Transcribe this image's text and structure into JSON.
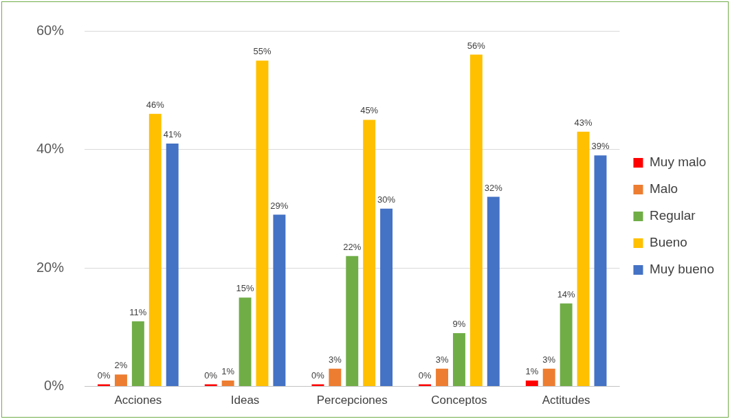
{
  "chart_data": {
    "type": "bar",
    "categories": [
      "Acciones",
      "Ideas",
      "Percepciones",
      "Conceptos",
      "Actitudes"
    ],
    "series": [
      {
        "name": "Muy malo",
        "color": "#ff0000",
        "values": [
          0,
          0,
          0,
          0,
          1
        ],
        "value_labels": [
          "0%",
          "0%",
          "0%",
          "0%",
          "1%"
        ]
      },
      {
        "name": "Malo",
        "color": "#ed7d31",
        "values": [
          2,
          1,
          3,
          3,
          3
        ],
        "value_labels": [
          "2%",
          "1%",
          "3%",
          "3%",
          "3%"
        ]
      },
      {
        "name": "Regular",
        "color": "#70ad47",
        "values": [
          11,
          15,
          22,
          9,
          14
        ],
        "value_labels": [
          "11%",
          "15%",
          "22%",
          "9%",
          "14%"
        ]
      },
      {
        "name": "Bueno",
        "color": "#ffc000",
        "values": [
          46,
          55,
          45,
          56,
          43
        ],
        "value_labels": [
          "46%",
          "55%",
          "45%",
          "56%",
          "43%"
        ]
      },
      {
        "name": "Muy bueno",
        "color": "#4472c4",
        "values": [
          41,
          29,
          30,
          32,
          39
        ],
        "value_labels": [
          "41%",
          "29%",
          "30%",
          "32%",
          "39%"
        ]
      }
    ],
    "ylim": [
      0,
      60
    ],
    "yticks": [
      {
        "value": 0,
        "label": "0%"
      },
      {
        "value": 20,
        "label": "20%"
      },
      {
        "value": 40,
        "label": "40%"
      },
      {
        "value": 60,
        "label": "60%"
      }
    ],
    "grid": "y",
    "legend": "right"
  }
}
